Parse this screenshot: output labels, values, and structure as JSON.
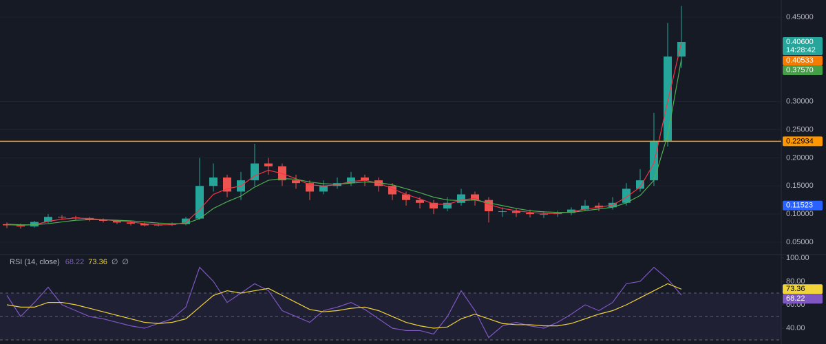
{
  "chart_data": [
    {
      "type": "candlestick",
      "open": [
        0.082,
        0.08,
        0.078,
        0.086,
        0.095,
        0.094,
        0.093,
        0.09,
        0.088,
        0.085,
        0.083,
        0.08,
        0.081,
        0.082,
        0.092,
        0.15,
        0.165,
        0.14,
        0.16,
        0.19,
        0.185,
        0.16,
        0.155,
        0.14,
        0.15,
        0.155,
        0.165,
        0.16,
        0.15,
        0.135,
        0.125,
        0.12,
        0.11,
        0.12,
        0.135,
        0.125,
        0.105,
        0.105,
        0.102,
        0.1,
        0.1,
        0.102,
        0.108,
        0.115,
        0.112,
        0.12,
        0.145,
        0.16,
        0.23,
        0.38
      ],
      "high": [
        0.085,
        0.083,
        0.088,
        0.1,
        0.098,
        0.097,
        0.095,
        0.092,
        0.09,
        0.088,
        0.086,
        0.084,
        0.085,
        0.095,
        0.2,
        0.19,
        0.17,
        0.175,
        0.225,
        0.2,
        0.19,
        0.17,
        0.16,
        0.16,
        0.165,
        0.175,
        0.17,
        0.165,
        0.155,
        0.14,
        0.13,
        0.125,
        0.13,
        0.145,
        0.14,
        0.13,
        0.112,
        0.11,
        0.108,
        0.105,
        0.106,
        0.112,
        0.125,
        0.12,
        0.13,
        0.155,
        0.18,
        0.28,
        0.44,
        0.47
      ],
      "low": [
        0.075,
        0.074,
        0.076,
        0.084,
        0.09,
        0.09,
        0.087,
        0.085,
        0.082,
        0.08,
        0.078,
        0.078,
        0.079,
        0.08,
        0.09,
        0.14,
        0.13,
        0.125,
        0.15,
        0.17,
        0.15,
        0.145,
        0.125,
        0.135,
        0.145,
        0.15,
        0.15,
        0.14,
        0.125,
        0.115,
        0.11,
        0.1,
        0.105,
        0.115,
        0.115,
        0.085,
        0.095,
        0.095,
        0.094,
        0.093,
        0.095,
        0.098,
        0.105,
        0.105,
        0.108,
        0.115,
        0.14,
        0.15,
        0.22,
        0.36
      ],
      "close": [
        0.08,
        0.078,
        0.086,
        0.095,
        0.094,
        0.093,
        0.09,
        0.088,
        0.085,
        0.083,
        0.08,
        0.081,
        0.082,
        0.092,
        0.15,
        0.165,
        0.14,
        0.16,
        0.19,
        0.185,
        0.16,
        0.155,
        0.14,
        0.15,
        0.155,
        0.165,
        0.16,
        0.15,
        0.135,
        0.125,
        0.12,
        0.11,
        0.12,
        0.135,
        0.125,
        0.105,
        0.105,
        0.102,
        0.1,
        0.1,
        0.102,
        0.108,
        0.115,
        0.112,
        0.12,
        0.145,
        0.16,
        0.23,
        0.38,
        0.406
      ],
      "up_color": "#26a69a",
      "down_color": "#ef5350",
      "last_price_label": "0.40600",
      "countdown": "14:28:42",
      "overlays": [
        {
          "color": "#f23645",
          "label_color": "#f57c00",
          "last_value_label": "0.40533",
          "values": [
            0.081,
            0.08,
            0.081,
            0.087,
            0.091,
            0.093,
            0.092,
            0.09,
            0.088,
            0.086,
            0.083,
            0.081,
            0.081,
            0.085,
            0.108,
            0.135,
            0.145,
            0.15,
            0.168,
            0.178,
            0.172,
            0.163,
            0.152,
            0.15,
            0.152,
            0.158,
            0.16,
            0.155,
            0.145,
            0.135,
            0.127,
            0.118,
            0.117,
            0.125,
            0.128,
            0.117,
            0.11,
            0.106,
            0.103,
            0.101,
            0.101,
            0.104,
            0.109,
            0.112,
            0.116,
            0.13,
            0.148,
            0.19,
            0.3,
            0.40533
          ]
        },
        {
          "color": "#4caf50",
          "label_color": "#43a047",
          "last_value_label": "0.37570",
          "values": [
            0.082,
            0.081,
            0.081,
            0.083,
            0.086,
            0.089,
            0.09,
            0.09,
            0.089,
            0.088,
            0.086,
            0.084,
            0.083,
            0.083,
            0.092,
            0.11,
            0.122,
            0.132,
            0.148,
            0.16,
            0.163,
            0.162,
            0.157,
            0.154,
            0.153,
            0.155,
            0.157,
            0.156,
            0.152,
            0.145,
            0.138,
            0.13,
            0.125,
            0.124,
            0.125,
            0.12,
            0.115,
            0.11,
            0.106,
            0.104,
            0.103,
            0.103,
            0.106,
            0.109,
            0.112,
            0.12,
            0.133,
            0.16,
            0.24,
            0.3757
          ]
        }
      ],
      "hline": {
        "value": 0.22934,
        "color": "#ff9800"
      },
      "marker": {
        "value": 0.11523,
        "color": "#2962ff"
      },
      "ylim": [
        0.028,
        0.4806
      ],
      "yticks": [
        {
          "value": 0.05,
          "label": "0.05000"
        },
        {
          "value": 0.1,
          "label": "0.10000"
        },
        {
          "value": 0.15,
          "label": "0.15000"
        },
        {
          "value": 0.2,
          "label": "0.20000"
        },
        {
          "value": 0.25,
          "label": "0.25000"
        },
        {
          "value": 0.3,
          "label": "0.30000"
        },
        {
          "value": 0.45,
          "label": "0.45000"
        }
      ],
      "grid": true
    },
    {
      "type": "line",
      "title": "RSI (14, close)",
      "empty_labels": [
        "∅",
        "∅"
      ],
      "series": [
        {
          "color": "#7e57c2",
          "values": [
            68,
            50,
            62,
            75,
            60,
            55,
            50,
            48,
            45,
            42,
            40,
            44,
            48,
            58,
            92,
            80,
            62,
            70,
            78,
            72,
            55,
            50,
            45,
            55,
            58,
            62,
            56,
            48,
            40,
            38,
            38,
            35,
            50,
            72,
            55,
            32,
            42,
            45,
            42,
            40,
            45,
            52,
            60,
            55,
            62,
            78,
            80,
            92,
            82,
            68.22
          ]
        },
        {
          "color": "#f0d43a",
          "values": [
            60,
            58,
            58,
            62,
            62,
            60,
            57,
            54,
            51,
            48,
            45,
            44,
            45,
            48,
            58,
            68,
            72,
            70,
            72,
            74,
            68,
            62,
            56,
            54,
            55,
            57,
            58,
            55,
            50,
            45,
            42,
            40,
            41,
            48,
            52,
            48,
            44,
            43,
            43,
            42,
            42,
            44,
            48,
            52,
            55,
            60,
            66,
            72,
            78,
            73.36
          ]
        }
      ],
      "levels": [
        70,
        50,
        30
      ],
      "ylim": [
        26.5,
        102.9
      ],
      "yticks": [
        {
          "value": 100,
          "label": "100.00"
        },
        {
          "value": 80,
          "label": "80.00"
        },
        {
          "value": 60,
          "label": "60.00"
        },
        {
          "value": 40,
          "label": "40.00"
        }
      ]
    }
  ]
}
